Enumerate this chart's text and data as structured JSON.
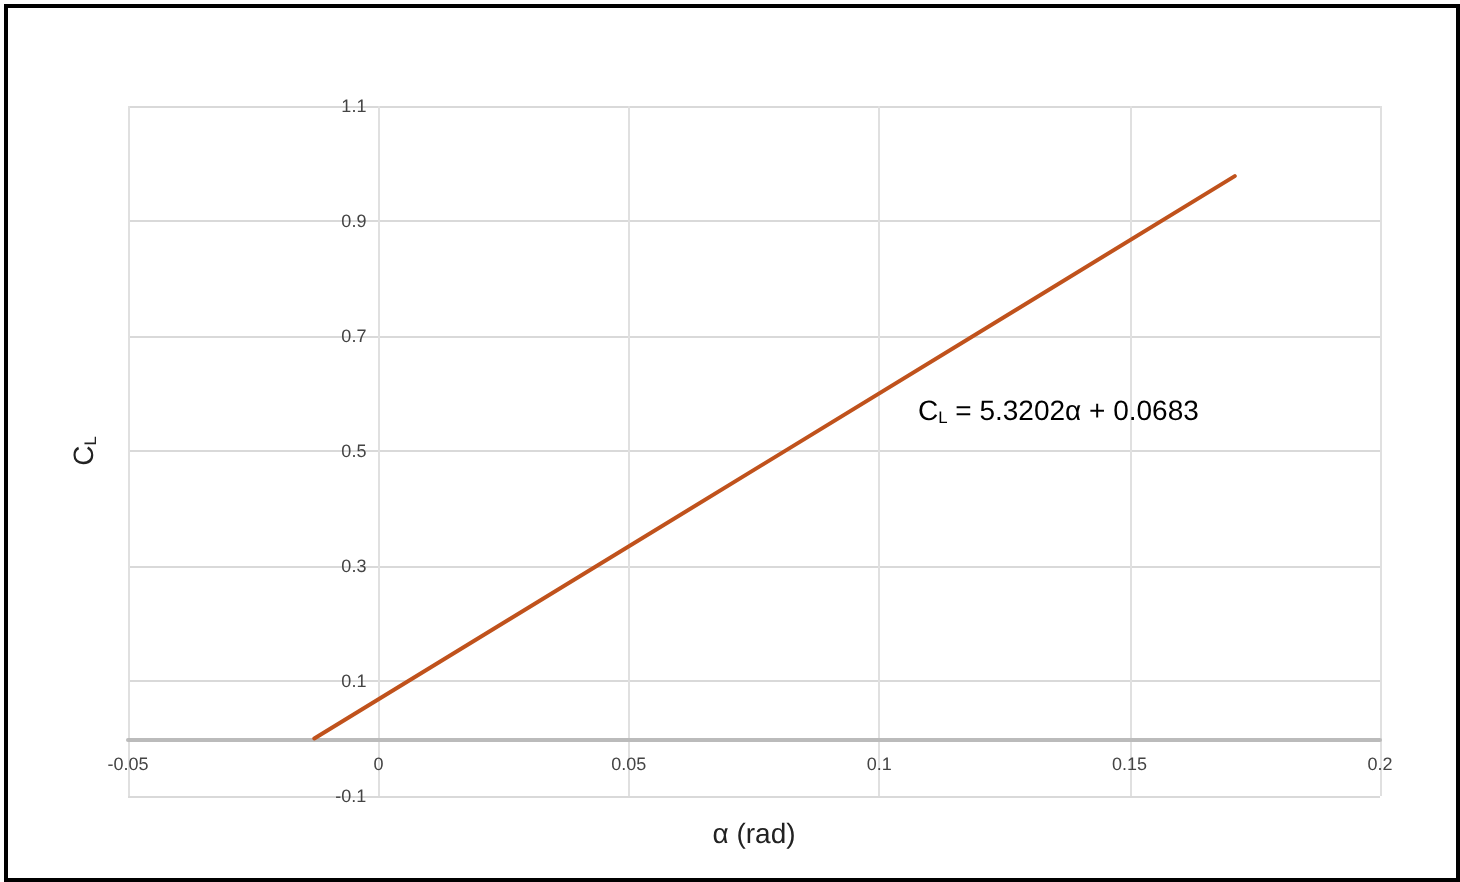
{
  "chart_data": {
    "type": "line",
    "xlabel": "α (rad)",
    "ylabel": "C$_{L}$",
    "series": [
      {
        "color": "#c0521c",
        "x": [
          -0.0128,
          0.171
        ],
        "values": [
          0,
          0.978
        ]
      }
    ],
    "xlim": [
      -0.05,
      0.2
    ],
    "xticks": [
      -0.05,
      0,
      0.05,
      0.1,
      0.15,
      0.2
    ],
    "ylim": [
      -0.1,
      1.1
    ],
    "yticks": [
      -0.1,
      0.1,
      0.3,
      0.5,
      0.7,
      0.9,
      1.1
    ],
    "grid": true,
    "marker": "none",
    "line_style": "solid",
    "annotations": [
      "C$_{L}$ = 5.3202α + 0.0683"
    ]
  }
}
